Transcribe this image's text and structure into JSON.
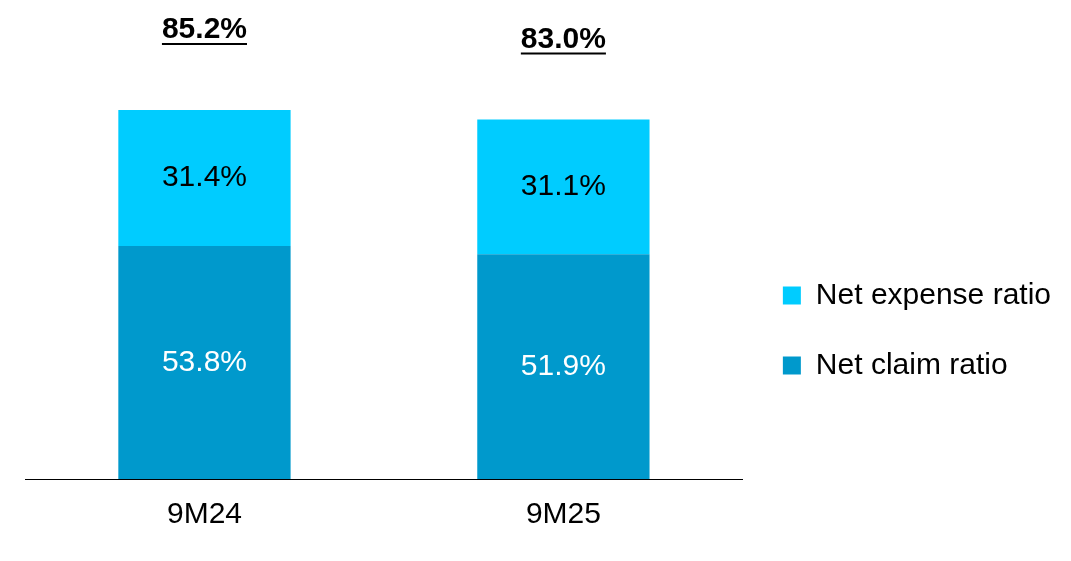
{
  "chart_data": {
    "type": "bar",
    "stacked": true,
    "categories": [
      "9M24",
      "9M25"
    ],
    "series": [
      {
        "name": "Net claim ratio",
        "color": "#0099cc",
        "values": [
          53.8,
          51.9
        ],
        "value_labels": [
          "53.8%",
          "51.9%"
        ]
      },
      {
        "name": "Net expense ratio",
        "color": "#00ccff",
        "values": [
          31.4,
          31.1
        ],
        "value_labels": [
          "31.4%",
          "31.1%"
        ]
      }
    ],
    "totals": [
      "85.2%",
      "83.0%"
    ],
    "legend": "right",
    "tick_labels": "x",
    "grid": false
  }
}
